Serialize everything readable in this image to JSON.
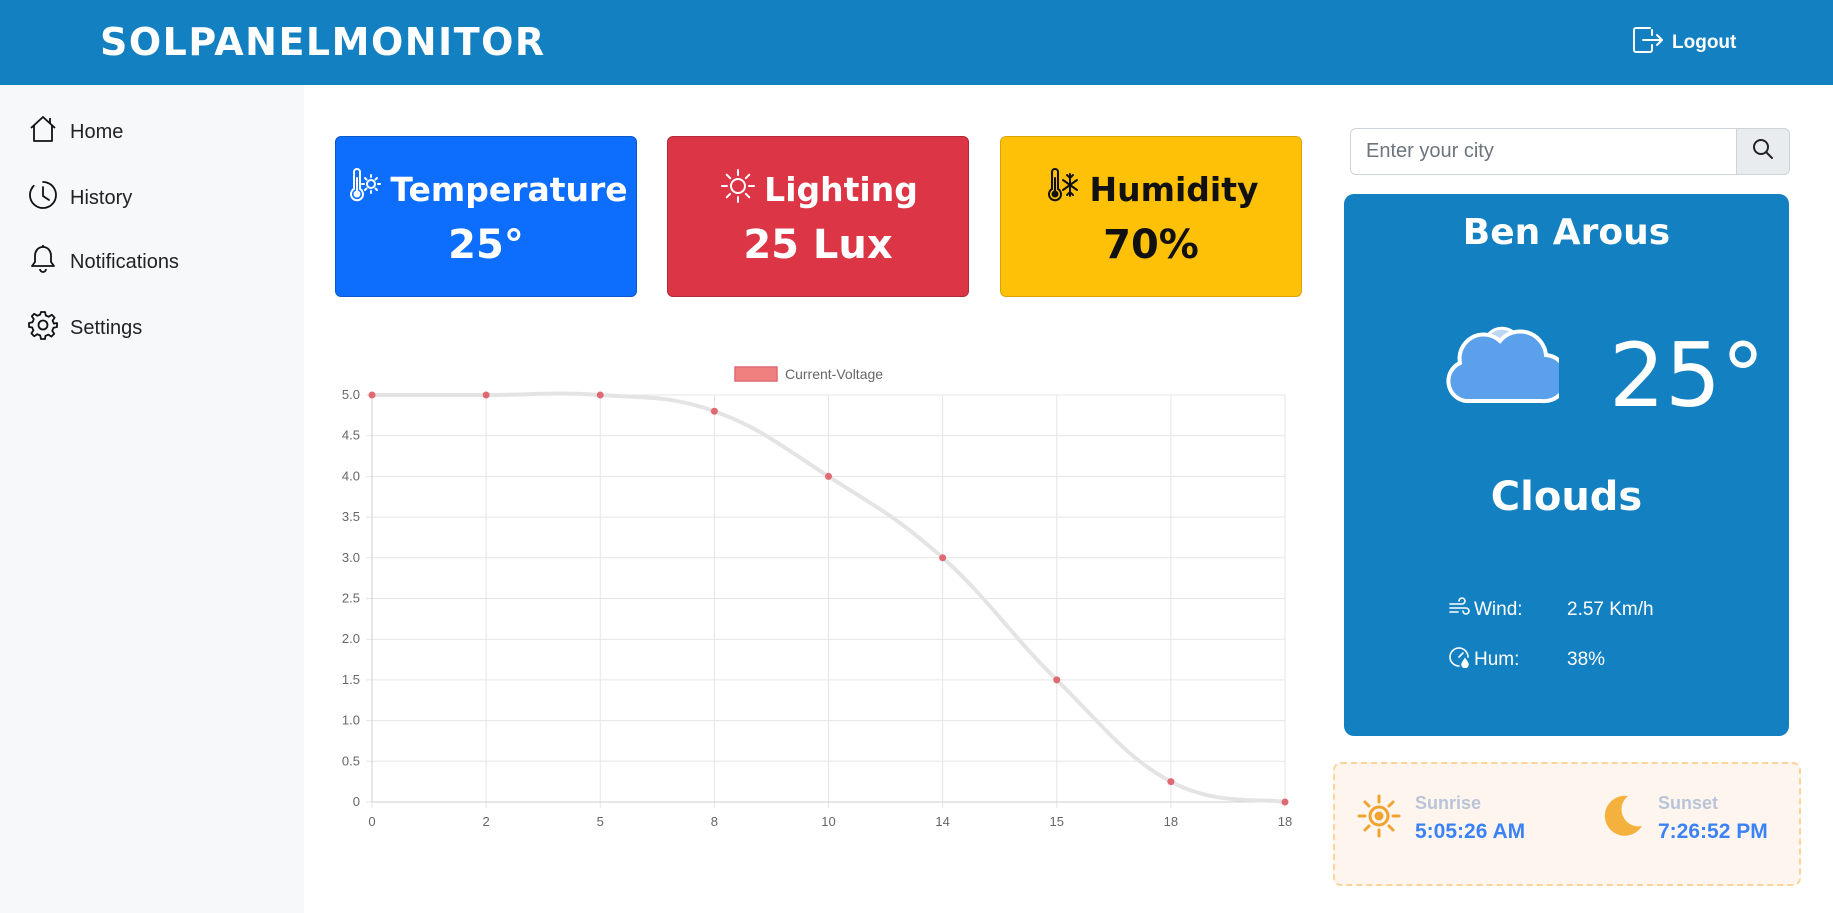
{
  "header": {
    "brand": "SOLPANELMONITOR",
    "logout_label": "Logout"
  },
  "sidebar": {
    "items": [
      {
        "label": "Home",
        "icon": "home-icon"
      },
      {
        "label": "History",
        "icon": "clock-icon"
      },
      {
        "label": "Notifications",
        "icon": "bell-icon"
      },
      {
        "label": "Settings",
        "icon": "gear-icon"
      }
    ]
  },
  "cards": {
    "temperature": {
      "title": "Temperature",
      "value": "25°",
      "color": "#0d6efd",
      "icon": "thermometer-sun-icon"
    },
    "lighting": {
      "title": "Lighting",
      "value": "25 Lux",
      "color": "#dc3545",
      "icon": "sun-icon"
    },
    "humidity": {
      "title": "Humidity",
      "value": "70%",
      "color": "#ffc107",
      "icon": "thermometer-snow-icon"
    }
  },
  "search": {
    "placeholder": "Enter your city"
  },
  "weather": {
    "city": "Ben Arous",
    "temperature": "25°",
    "condition": "Clouds",
    "wind_label": "Wind:",
    "wind_value": "2.57 Km/h",
    "hum_label": "Hum:",
    "hum_value": "38%",
    "background": "#1380c1"
  },
  "sun": {
    "sunrise_label": "Sunrise",
    "sunrise_time": "5:05:26 AM",
    "sunset_label": "Sunset",
    "sunset_time": "7:26:52 PM"
  },
  "chart_data": {
    "type": "line",
    "categories": [
      "0",
      "2",
      "5",
      "8",
      "10",
      "14",
      "15",
      "18",
      "18"
    ],
    "series": [
      {
        "name": "Current-Voltage",
        "values": [
          5.0,
          5.0,
          5.0,
          4.8,
          4.0,
          3.0,
          1.5,
          0.25,
          0.0
        ],
        "color": "#e06a73"
      }
    ],
    "yticks": [
      "0",
      "0.5",
      "1.0",
      "1.5",
      "2.0",
      "2.5",
      "3.0",
      "3.5",
      "4.0",
      "4.5",
      "5.0"
    ],
    "ylim": [
      0,
      5
    ],
    "grid": true,
    "legend": "top-center"
  }
}
